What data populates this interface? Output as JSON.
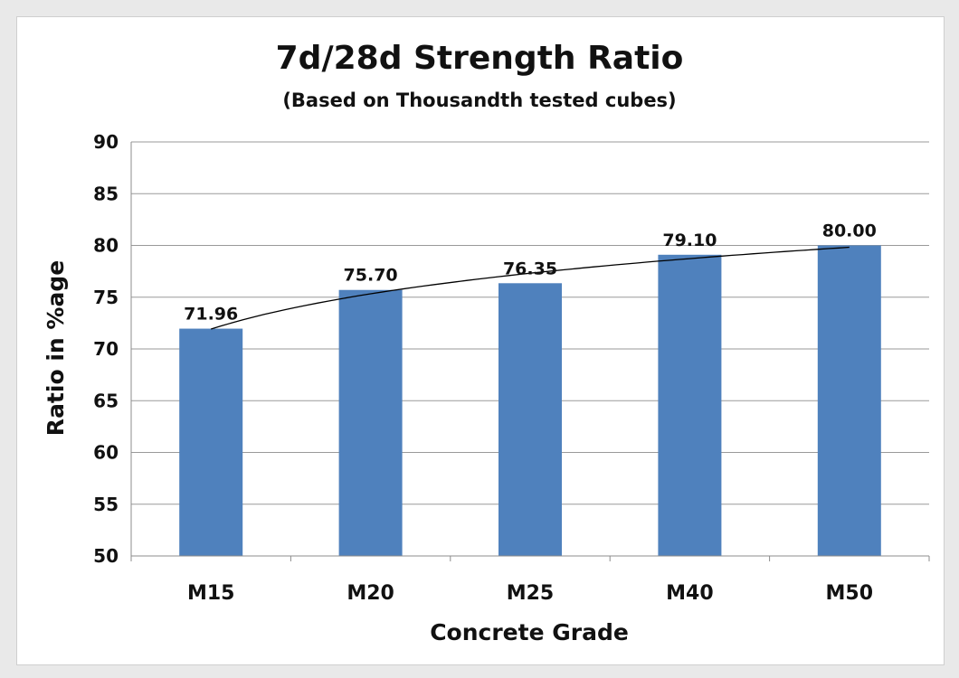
{
  "chart_data": {
    "type": "bar",
    "title": "7d/28d Strength Ratio",
    "subtitle": "(Based on Thousandth tested cubes)",
    "xlabel": "Concrete Grade",
    "ylabel": "Ratio in %age",
    "categories": [
      "M15",
      "M20",
      "M25",
      "M40",
      "M50"
    ],
    "values": [
      71.96,
      75.7,
      76.35,
      79.1,
      80.0
    ],
    "data_labels": [
      "71.96",
      "75.70",
      "76.35",
      "79.10",
      "80.00"
    ],
    "ylim": [
      50,
      90
    ],
    "yticks": [
      "50",
      "55",
      "60",
      "65",
      "70",
      "75",
      "80",
      "85",
      "90"
    ],
    "grid": true,
    "trendline": "logarithmic",
    "colors": {
      "bar": "#4f81bd",
      "grid": "#9a9a9a",
      "trendline": "#000000"
    }
  }
}
